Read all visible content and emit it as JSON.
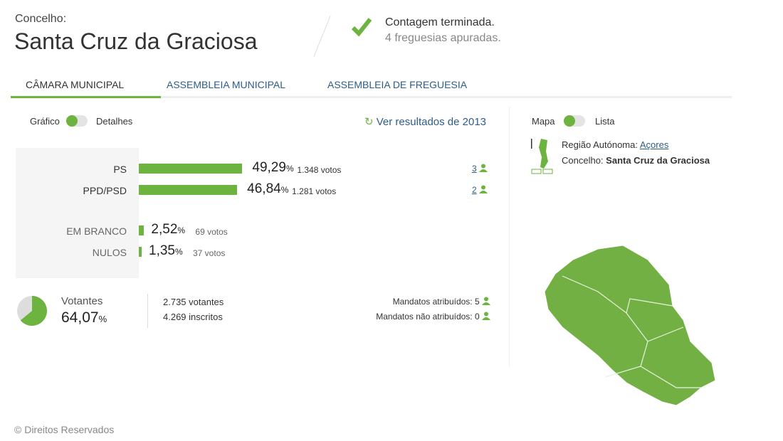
{
  "header": {
    "label": "Concelho:",
    "title": "Santa Cruz da Graciosa",
    "status_title": "Contagem terminada.",
    "status_sub": "4 freguesias apuradas.",
    "status_icon": "check-icon"
  },
  "tabs": [
    {
      "label": "CÂMARA MUNICIPAL",
      "active": true
    },
    {
      "label": "ASSEMBLEIA MUNICIPAL"
    },
    {
      "label": "ASSEMBLEIA DE FREGUESIA"
    }
  ],
  "view_toggle": {
    "left": "Gráfico",
    "right": "Detalhes",
    "selected": "Gráfico"
  },
  "previous_link": "Ver resultados de 2013",
  "chart_data": {
    "type": "bar",
    "categories": [
      "PS",
      "PPD/PSD",
      "EM BRANCO",
      "NULOS"
    ],
    "values": [
      49.29,
      46.84,
      2.52,
      1.35
    ],
    "pct_labels": [
      "49,29",
      "46,84",
      "2,52",
      "1,35"
    ],
    "votes": [
      "1.348 votos",
      "1.281 votos",
      "69 votos",
      "37 votos"
    ],
    "seats": [
      "3",
      "2",
      null,
      null
    ],
    "pct_unit": "%"
  },
  "turnout": {
    "label": "Votantes",
    "value": "64,07",
    "unit": "%",
    "fraction": 0.6407,
    "voters": "2.735 votantes",
    "registered": "4.269 inscritos"
  },
  "mandates": {
    "assigned": "Mandatos atribuídos: 5",
    "unassigned": "Mandatos não atribuídos: 0"
  },
  "map_toggle": {
    "left": "Mapa",
    "right": "Lista",
    "selected": "Mapa"
  },
  "location": {
    "region_label": "Região Autónoma:",
    "region": "Açores",
    "county_label": "Concelho:",
    "county": "Santa Cruz da Graciosa"
  },
  "footer": "© Direitos Reservados",
  "colors": {
    "accent": "#6db33f",
    "link": "#2c5d8a"
  }
}
